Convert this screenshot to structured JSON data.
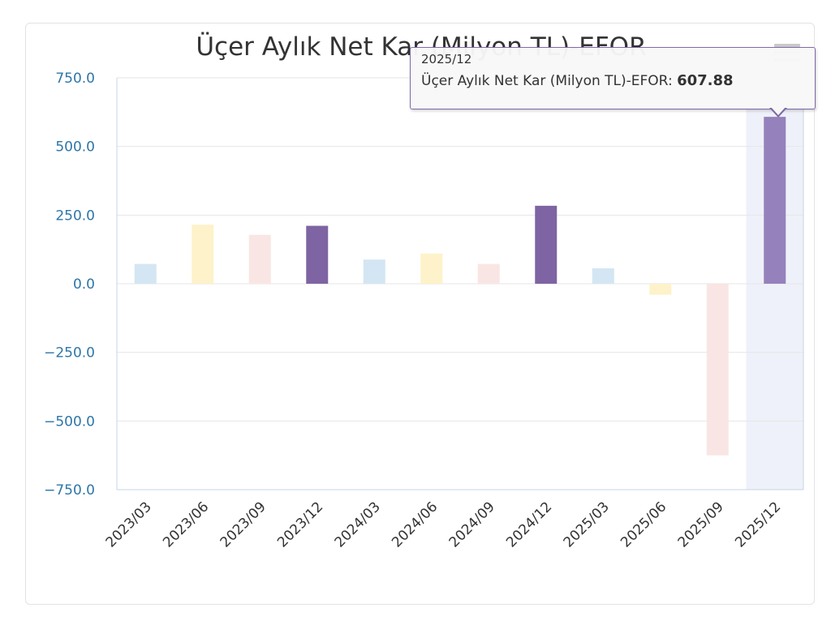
{
  "chart_data": {
    "type": "bar",
    "title": "Üçer Aylık Net Kar (Milyon TL)-EFOR",
    "categories": [
      "2023/03",
      "2023/06",
      "2023/09",
      "2023/12",
      "2024/03",
      "2024/06",
      "2024/09",
      "2024/12",
      "2025/03",
      "2025/06",
      "2025/09",
      "2025/12"
    ],
    "series": [
      {
        "values": [
          72,
          215,
          178,
          211,
          88,
          110,
          72,
          284,
          56,
          -40,
          -625,
          607.88
        ]
      }
    ],
    "bar_colors": [
      "#d4e6f3",
      "#fdf2c9",
      "#f9e6e4",
      "#7e64a2",
      "#d4e6f3",
      "#fdf2c9",
      "#f9e6e4",
      "#7e64a2",
      "#d4e6f3",
      "#fdf2c9",
      "#f9e6e4",
      "#9581bb"
    ],
    "ylim": [
      -750,
      750
    ],
    "yticks": [
      "750.0",
      "500.0",
      "250.0",
      "0.0",
      "−250.0",
      "−500.0",
      "−750.0"
    ],
    "ytick_values": [
      750,
      500,
      250,
      0,
      -250,
      -500,
      -750
    ],
    "grid": true,
    "legend": "none",
    "highlighted_index": 11,
    "colors": {
      "grid": "#e6e6e6",
      "axis": "#c6d4e8",
      "highlight_band": "#eef1f9",
      "tooltip_border": "#7e6ba6"
    }
  },
  "tooltip": {
    "date": "2025/12",
    "series_label": "Üçer Aylık Net Kar (Milyon TL)-EFOR: ",
    "value": "607.88"
  },
  "toolbar": {
    "menu_icon": "hamburger-menu-icon"
  }
}
